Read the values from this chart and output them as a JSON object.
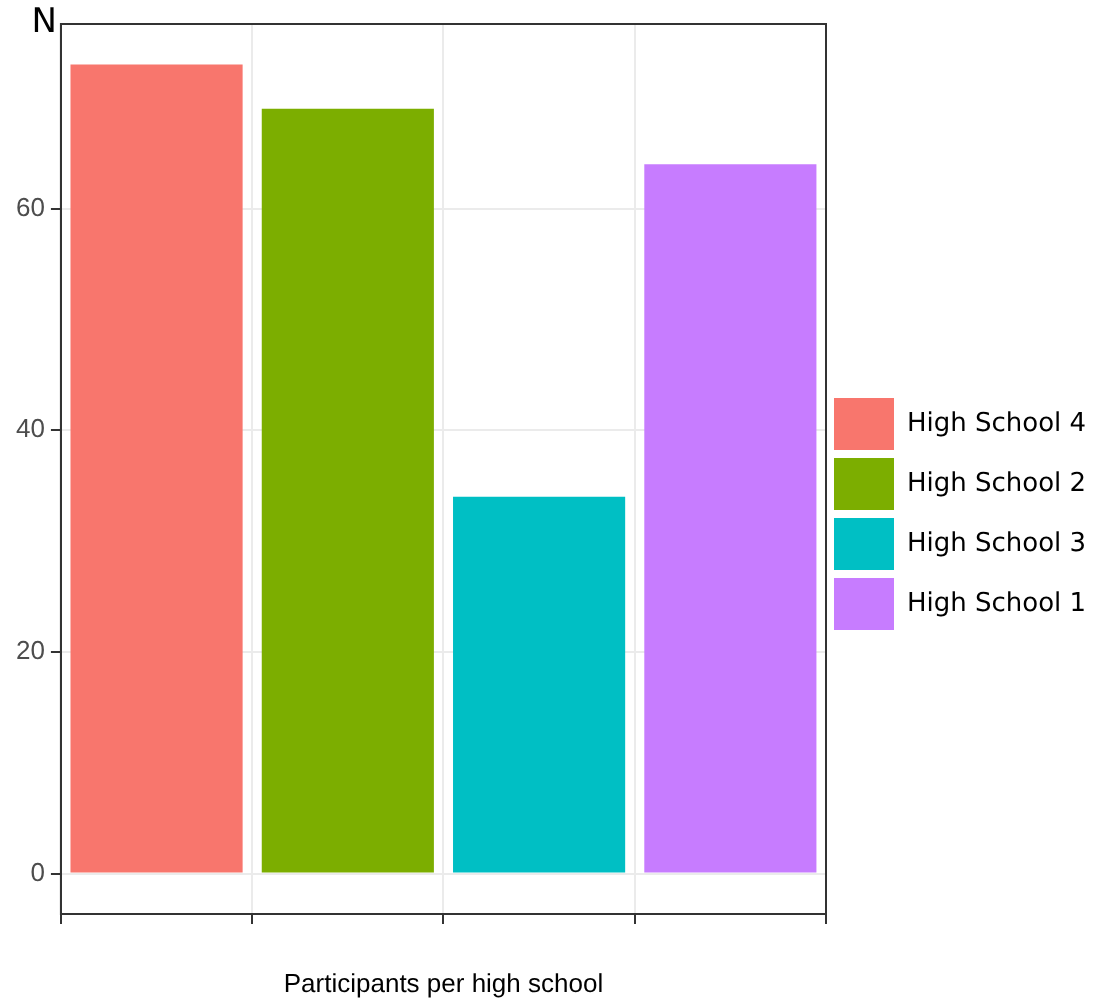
{
  "chart_data": {
    "type": "bar",
    "ylabel": "N",
    "xlabel": "Participants per high school",
    "categories": [
      null,
      null,
      null,
      null
    ],
    "series": [
      {
        "name": "High School 4",
        "color": "#f8766d",
        "values": [
          73,
          null,
          null,
          null
        ]
      },
      {
        "name": "High School 2",
        "color": "#7cae00",
        "values": [
          null,
          69,
          null,
          null
        ]
      },
      {
        "name": "High School 3",
        "color": "#00bfc4",
        "values": [
          null,
          null,
          34,
          null
        ]
      },
      {
        "name": "High School 1",
        "color": "#c77cff",
        "values": [
          null,
          null,
          null,
          64
        ]
      }
    ],
    "ylim": [
      -3.65,
      76.65
    ],
    "yticks": [
      0,
      20,
      40,
      60
    ],
    "grid": true,
    "legend": "right"
  }
}
